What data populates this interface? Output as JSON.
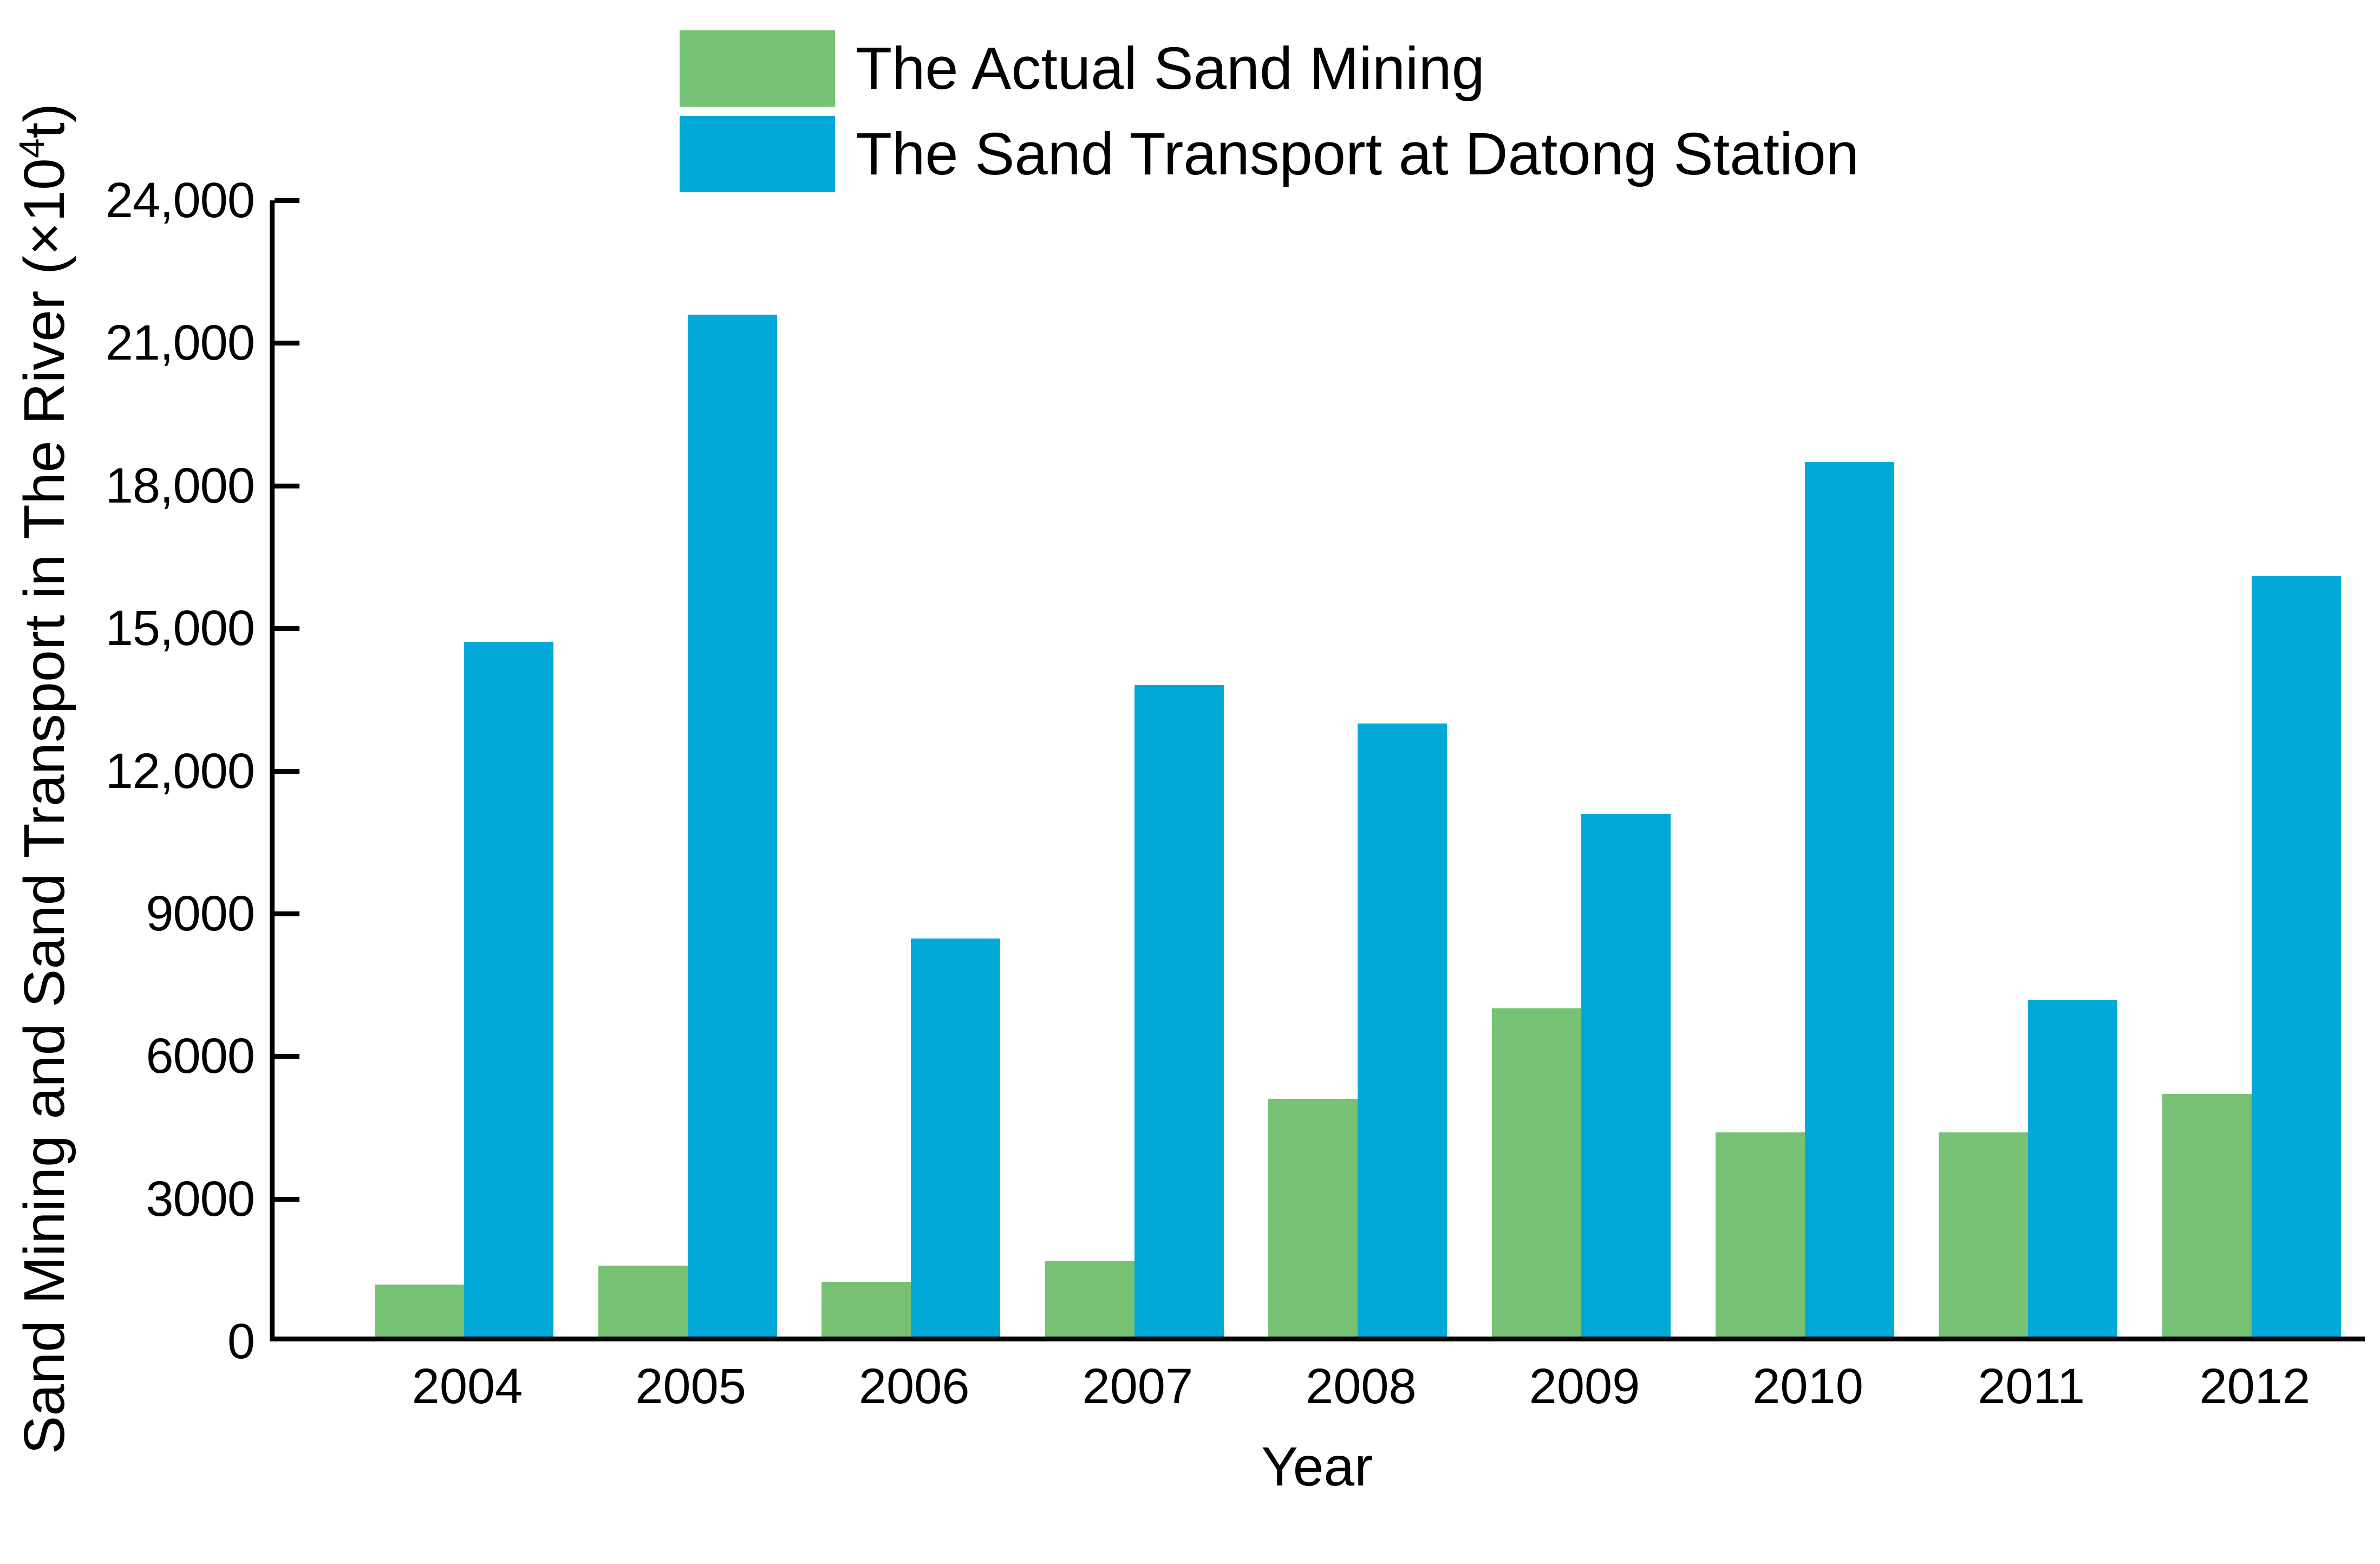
{
  "chart_data": {
    "type": "bar",
    "categories": [
      "2004",
      "2005",
      "2006",
      "2007",
      "2008",
      "2009",
      "2010",
      "2011",
      "2012"
    ],
    "series": [
      {
        "name": "The Actual Sand Mining",
        "color": "#76C173",
        "values": [
          1200,
          1600,
          1250,
          1700,
          5100,
          7000,
          4400,
          4400,
          5200
        ]
      },
      {
        "name": "The Sand Transport at Datong Station",
        "color": "#00A9D8",
        "values": [
          14700,
          21600,
          8480,
          13800,
          13000,
          11100,
          18500,
          7180,
          16100
        ]
      }
    ],
    "title": "",
    "xlabel": "Year",
    "ylabel": "Sand Mining and Sand Transport in The River (×10⁴t)",
    "ylabel_prefix": "Sand Mining and Sand Transport in The River (×10",
    "ylabel_sup_exponent": "4",
    "ylabel_suffix": "t)",
    "ylim": [
      0,
      24000
    ],
    "ytick_step": 3000,
    "yticks": [
      {
        "label": "0",
        "value": 0
      },
      {
        "label": "3000",
        "value": 3000
      },
      {
        "label": "6000",
        "value": 6000
      },
      {
        "label": "9000",
        "value": 9000
      },
      {
        "label": "12,000",
        "value": 12000
      },
      {
        "label": "15,000",
        "value": 15000
      },
      {
        "label": "18,000",
        "value": 18000
      },
      {
        "label": "21,000",
        "value": 21000
      },
      {
        "label": "24,000",
        "value": 24000
      }
    ],
    "grid": false,
    "legend_position": "top-left-inside",
    "axis_color": "#000000",
    "background_color": "#FFFFFF"
  }
}
